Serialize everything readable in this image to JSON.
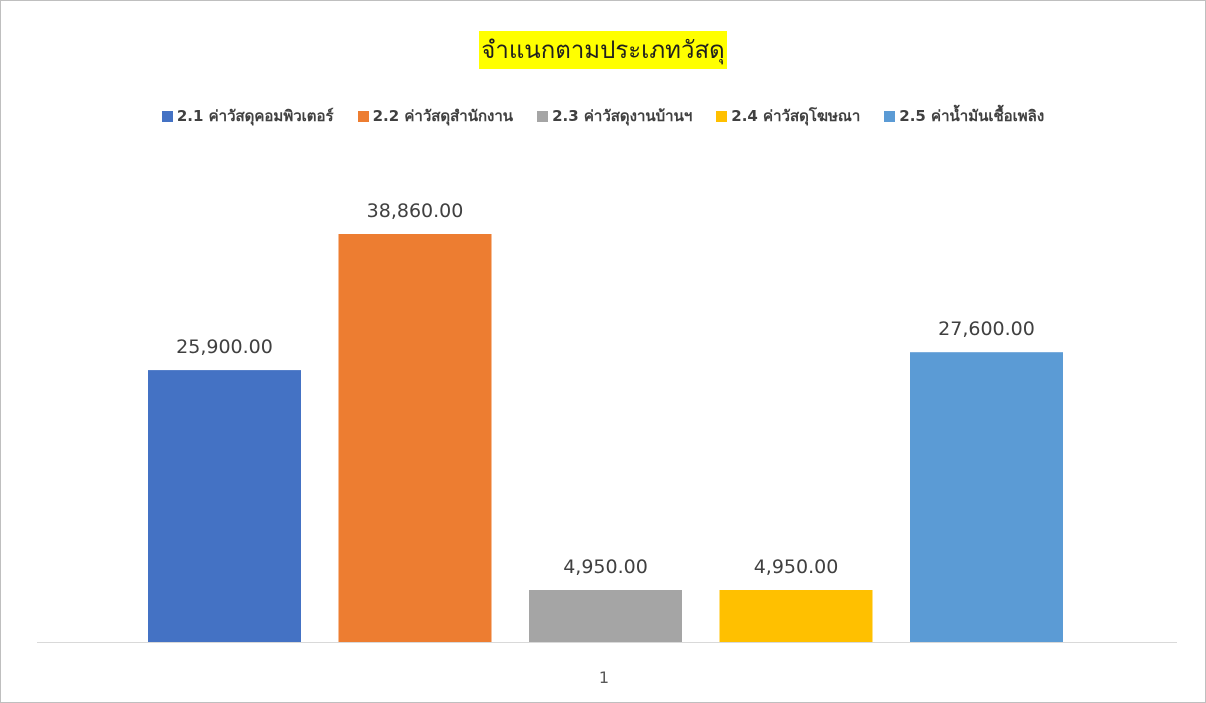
{
  "chart_data": {
    "type": "bar",
    "title": "จำแนกตามประเภทวัสดุ",
    "categories": [
      "1"
    ],
    "series": [
      {
        "name": "2.1 ค่าวัสดุคอมพิวเตอร์",
        "values": [
          25900
        ],
        "label": "25,900.00",
        "color": "#4472C4"
      },
      {
        "name": "2.2 ค่าวัสดุสำนักงาน",
        "values": [
          38860
        ],
        "label": "38,860.00",
        "color": "#ED7D31"
      },
      {
        "name": "2.3 ค่าวัสดุงานบ้านฯ",
        "values": [
          4950
        ],
        "label": "4,950.00",
        "color": "#A5A5A5"
      },
      {
        "name": "2.4 ค่าวัสดุโฆษณา",
        "values": [
          4950
        ],
        "label": "4,950.00",
        "color": "#FFC000"
      },
      {
        "name": "2.5 ค่าน้ำมันเชื้อเพลิง",
        "values": [
          27600
        ],
        "label": "27,600.00",
        "color": "#5B9BD5"
      }
    ],
    "xlabel": "",
    "ylabel": "",
    "ylim": [
      0,
      45000
    ],
    "grid": false,
    "legend_position": "top",
    "title_highlight_color": "#FFFF00"
  }
}
